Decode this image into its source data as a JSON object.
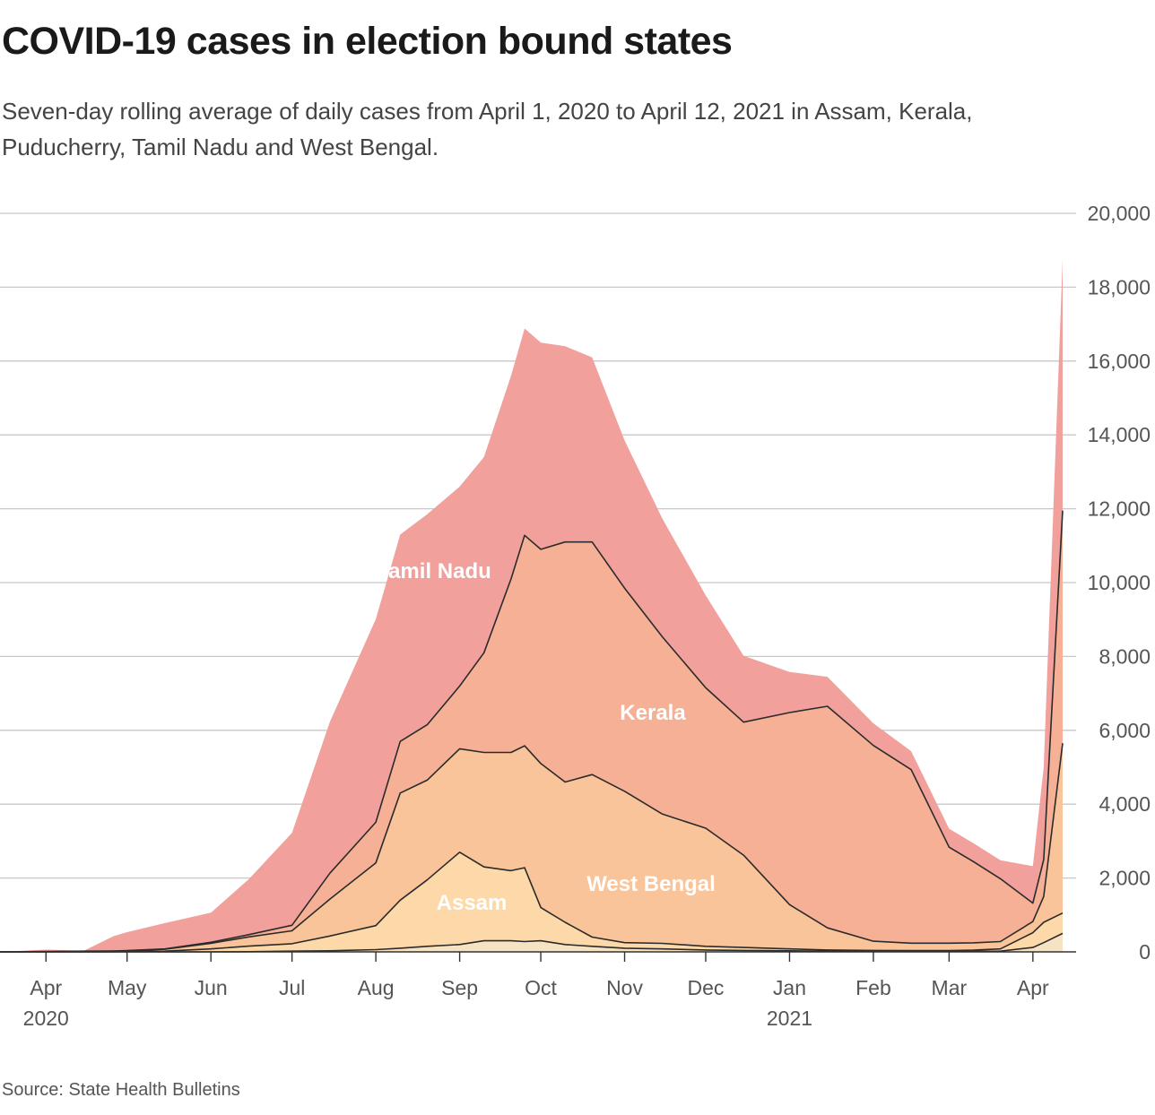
{
  "title": "COVID-19 cases in election bound states",
  "subtitle": "Seven-day rolling average of daily cases from April 1, 2020 to April 12, 2021 in Assam, Kerala, Puducherry, Tamil Nadu and West Bengal.",
  "source": "Source: State Health Bulletins",
  "chart_data": {
    "type": "area",
    "stacked": true,
    "x_start": "2020-03-15",
    "x_end": "2021-04-12",
    "ylim": [
      0,
      20000
    ],
    "yticks": [
      0,
      2000,
      4000,
      6000,
      8000,
      10000,
      12000,
      14000,
      16000,
      18000,
      20000
    ],
    "ytick_labels": [
      "0",
      "2,000",
      "4,000",
      "6,000",
      "8,000",
      "10,000",
      "12,000",
      "14,000",
      "16,000",
      "18,000",
      "20,000"
    ],
    "xticks": [
      {
        "date": "2020-04-01",
        "label": "Apr",
        "year": "2020"
      },
      {
        "date": "2020-05-01",
        "label": "May",
        "year": ""
      },
      {
        "date": "2020-06-01",
        "label": "Jun",
        "year": ""
      },
      {
        "date": "2020-07-01",
        "label": "Jul",
        "year": ""
      },
      {
        "date": "2020-08-01",
        "label": "Aug",
        "year": ""
      },
      {
        "date": "2020-09-01",
        "label": "Sep",
        "year": ""
      },
      {
        "date": "2020-10-01",
        "label": "Oct",
        "year": ""
      },
      {
        "date": "2020-11-01",
        "label": "Nov",
        "year": ""
      },
      {
        "date": "2020-12-01",
        "label": "Dec",
        "year": ""
      },
      {
        "date": "2021-01-01",
        "label": "Jan",
        "year": "2021"
      },
      {
        "date": "2021-02-01",
        "label": "Feb",
        "year": ""
      },
      {
        "date": "2021-03-01",
        "label": "Mar",
        "year": ""
      },
      {
        "date": "2021-04-01",
        "label": "Apr",
        "year": ""
      }
    ],
    "grid": true,
    "legend": "inline labels",
    "dates": [
      "2020-03-15",
      "2020-04-01",
      "2020-04-15",
      "2020-04-26",
      "2020-05-01",
      "2020-05-15",
      "2020-06-01",
      "2020-06-15",
      "2020-07-01",
      "2020-07-15",
      "2020-08-01",
      "2020-08-10",
      "2020-08-20",
      "2020-09-01",
      "2020-09-10",
      "2020-09-20",
      "2020-09-25",
      "2020-10-01",
      "2020-10-10",
      "2020-10-20",
      "2020-11-01",
      "2020-11-15",
      "2020-12-01",
      "2020-12-15",
      "2021-01-01",
      "2021-01-15",
      "2021-02-01",
      "2021-02-15",
      "2021-03-01",
      "2021-03-10",
      "2021-03-20",
      "2021-04-01",
      "2021-04-05",
      "2021-04-12"
    ],
    "series": [
      {
        "name": "Puducherry",
        "color": "#f5e3c3",
        "values": [
          0,
          0,
          0,
          0,
          0,
          0,
          0,
          5,
          20,
          30,
          60,
          100,
          150,
          200,
          300,
          300,
          280,
          300,
          200,
          150,
          100,
          80,
          50,
          40,
          30,
          20,
          20,
          15,
          15,
          15,
          20,
          120,
          250,
          500
        ]
      },
      {
        "name": "Assam",
        "color": "#fdd9a9",
        "values": [
          0,
          0,
          0,
          5,
          10,
          20,
          80,
          150,
          200,
          400,
          650,
          1300,
          1800,
          2500,
          2000,
          1900,
          2000,
          900,
          600,
          250,
          150,
          150,
          100,
          80,
          50,
          30,
          20,
          20,
          20,
          30,
          60,
          400,
          550,
          550
        ]
      },
      {
        "name": "West Bengal",
        "color": "#f9c49a",
        "values": [
          0,
          5,
          10,
          15,
          20,
          50,
          150,
          250,
          350,
          1000,
          1700,
          2900,
          2700,
          2800,
          3100,
          3200,
          3300,
          3900,
          3800,
          4400,
          4100,
          3500,
          3200,
          2500,
          1200,
          600,
          250,
          200,
          200,
          200,
          200,
          300,
          700,
          4600
        ]
      },
      {
        "name": "Kerala",
        "color": "#f6b096",
        "values": [
          0,
          5,
          10,
          5,
          5,
          10,
          30,
          60,
          150,
          700,
          1100,
          1400,
          1500,
          1700,
          2700,
          4700,
          5700,
          5800,
          6500,
          6300,
          5500,
          4800,
          3800,
          3600,
          5200,
          6000,
          5300,
          4700,
          2600,
          2200,
          1700,
          500,
          1000,
          6300
        ]
      },
      {
        "name": "Tamil Nadu",
        "color": "#f1a09c",
        "values": [
          0,
          50,
          10,
          400,
          500,
          700,
          800,
          1500,
          2500,
          4100,
          5500,
          5600,
          5700,
          5400,
          5300,
          5500,
          5600,
          5600,
          5300,
          5000,
          4000,
          3200,
          2500,
          1800,
          1100,
          800,
          600,
          500,
          500,
          500,
          500,
          1000,
          2500,
          6800
        ]
      }
    ],
    "labels": [
      {
        "series": "Tamil Nadu",
        "text": "Tamil Nadu"
      },
      {
        "series": "Kerala",
        "text": "Kerala"
      },
      {
        "series": "West Bengal",
        "text": "West Bengal"
      },
      {
        "series": "Assam",
        "text": "Assam"
      }
    ]
  }
}
